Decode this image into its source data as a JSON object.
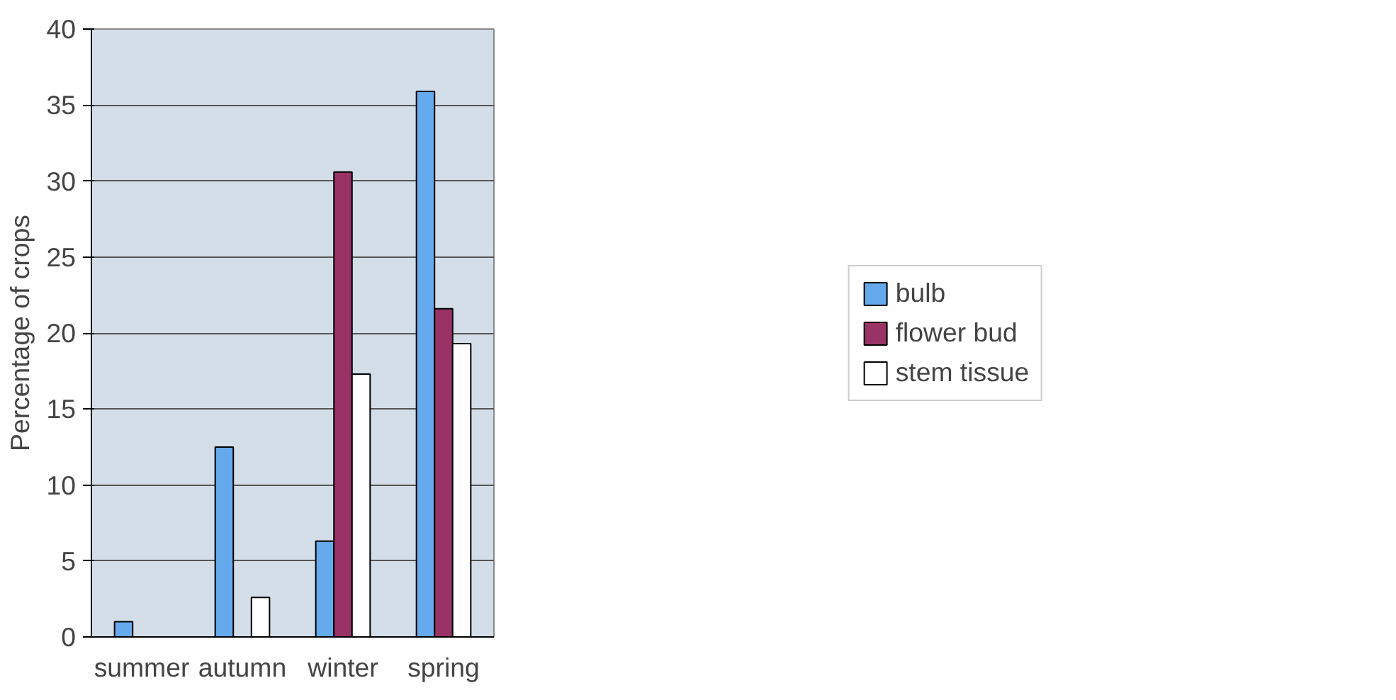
{
  "chart_data": {
    "type": "bar",
    "ylabel": "Percentage of crops",
    "categories": [
      "summer",
      "autumn",
      "winter",
      "spring"
    ],
    "series": [
      {
        "name": "bulb",
        "color": "#66aaee",
        "values": [
          1.0,
          12.5,
          6.3,
          35.9
        ]
      },
      {
        "name": "flower bud",
        "color": "#993366",
        "values": [
          null,
          null,
          30.6,
          21.6
        ]
      },
      {
        "name": "stem tissue",
        "color": "#ffffff",
        "values": [
          null,
          2.6,
          17.3,
          19.3
        ]
      }
    ],
    "ylim": [
      0,
      40
    ],
    "yticks": [
      0,
      5,
      10,
      15,
      20,
      25,
      30,
      35,
      40
    ],
    "grid": "y",
    "legend": "right"
  }
}
